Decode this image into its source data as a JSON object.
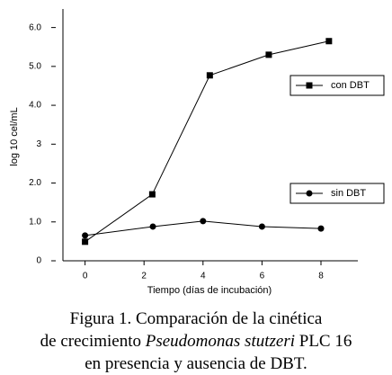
{
  "chart_data": {
    "type": "line",
    "x_label": "Tiempo (días de incubación)",
    "y_label": "log 10 cel/mL",
    "series": [
      {
        "name": "con DBT",
        "color": "#000000",
        "marker": "square",
        "x": [
          0,
          2.28,
          4.23,
          6.23,
          8.27
        ],
        "values": [
          0.49,
          1.71,
          4.77,
          5.3,
          5.65
        ]
      },
      {
        "name": "sin DBT",
        "color": "#000000",
        "marker": "circle",
        "x": [
          0,
          2.3,
          4.0,
          6.0,
          8.0
        ],
        "values": [
          0.65,
          0.88,
          1.02,
          0.88,
          0.83
        ]
      }
    ],
    "xlim": [
      -0.75,
      9.25
    ],
    "xticks": [
      0,
      2,
      4,
      6,
      8
    ],
    "ylim": [
      0,
      6.5
    ],
    "yticks": [
      0,
      {
        "value": 1,
        "label": "1.0"
      },
      {
        "value": 2,
        "label": "2.0"
      },
      {
        "value": 3,
        "label": "3"
      },
      {
        "value": 4,
        "label": "4.0"
      },
      {
        "value": 5,
        "label": "5.0"
      },
      {
        "value": 6,
        "label": "6.0"
      }
    ],
    "grid": false
  },
  "caption": {
    "line1": "Figura 1. Comparación de la cinética",
    "line2_start": "de crecimiento ",
    "species": "Pseudomonas stutzeri",
    "line2_end": " PLC 16",
    "line3": "en presencia y ausencia de DBT."
  }
}
